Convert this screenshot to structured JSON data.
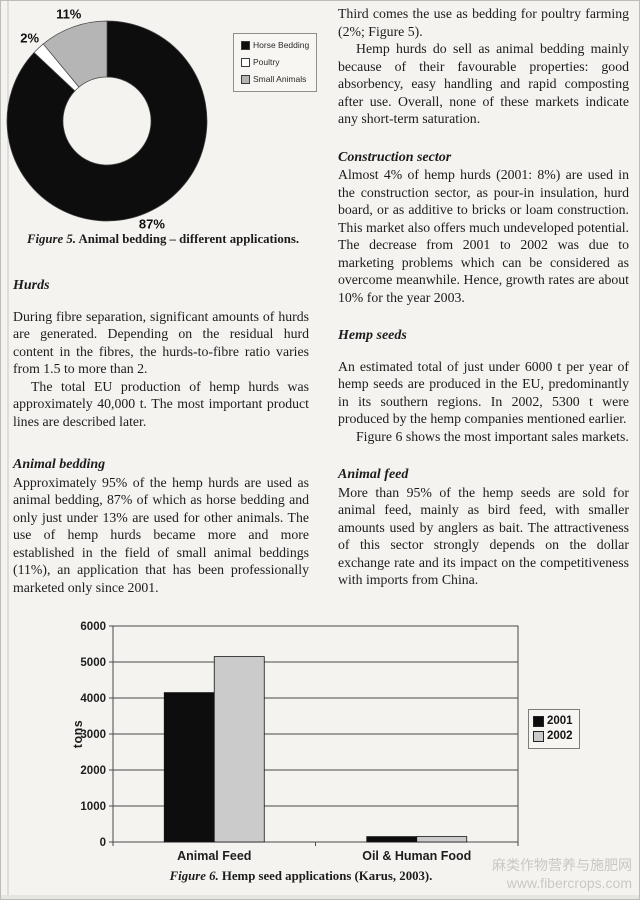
{
  "left_column": {
    "heading1": "Hurds",
    "para1": "During fibre separation, significant amounts of hurds are generated. Depending on the residual hurd content in the fibres, the hurds-to-fibre ratio varies from 1.5 to more than 2.",
    "para2": "The total EU production of hemp hurds was approximately 40,000 t. The most important product lines are described later.",
    "heading2": "Animal bedding",
    "para3": "Approximately 95% of the hemp hurds are used as animal bedding, 87% of which as horse bedding and only just under 13% are used for other animals. The use of hemp hurds became more and more established in the field of small animal beddings (11%), an application that has been professionally marketed only since 2001."
  },
  "right_column": {
    "para1": "Third comes the use as bedding for poultry farming (2%; Figure 5).",
    "para2": "Hemp hurds do sell as animal bedding mainly because of their favourable properties: good absorbency, easy handling and rapid composting after use. Overall, none of these markets indicate any short-term saturation.",
    "heading1": "Construction sector",
    "para3": "Almost 4% of hemp hurds (2001: 8%) are used in the construction sector, as pour-in insulation, hurd board, or as additive to bricks or loam construction. This market also offers much undeveloped potential. The decrease from 2001 to 2002 was due to marketing problems which can be considered as overcome meanwhile. Hence, growth rates are about 10% for the year 2003.",
    "heading2": "Hemp seeds",
    "para4": "An estimated total of just under 6000 t per year of hemp seeds are produced in the EU, predominantly in its southern regions. In 2002, 5300 t were produced by the hemp companies mentioned earlier.",
    "para5": "Figure 6 shows the most important sales markets.",
    "heading3": "Animal feed",
    "para6": "More than 95% of the hemp seeds are sold for animal feed, mainly as bird feed, with smaller amounts used by anglers as bait. The attractiveness of this sector strongly depends on the dollar exchange rate and its impact on the competitiveness with imports from China."
  },
  "figure5": {
    "caption_label": "Figure 5.",
    "caption_text": "Animal bedding – different applications."
  },
  "figure6": {
    "caption_label": "Figure 6.",
    "caption_text": "Hemp seed applications (Karus, 2003)."
  },
  "watermark": {
    "line1": "麻类作物营养与施肥网",
    "line2": "www.fibercrops.com"
  },
  "chart_data": [
    {
      "type": "pie",
      "subtype": "donut",
      "labels": [
        "Horse Bedding",
        "Poultry",
        "Small Animals"
      ],
      "values": [
        87,
        2,
        11
      ],
      "data_labels": [
        "87%",
        "2%",
        "11%"
      ],
      "colors": [
        "#0d0d0d",
        "#ffffff",
        "#b5b5b5"
      ],
      "start_angle_deg": 0,
      "direction": "clockwise",
      "legend_position": "right",
      "caption": "Figure 5. Animal bedding – different applications."
    },
    {
      "type": "bar",
      "categories": [
        "Animal Feed",
        "Oil & Human Food"
      ],
      "series": [
        {
          "name": "2001",
          "color": "#0d0d0d",
          "values": [
            4150,
            150
          ]
        },
        {
          "name": "2002",
          "color": "#cbcbcb",
          "values": [
            5150,
            150
          ]
        }
      ],
      "ylabel": "tons",
      "ylim": [
        0,
        6000
      ],
      "ytick_step": 1000,
      "grid": true,
      "legend_position": "right",
      "caption": "Figure 6. Hemp seed applications (Karus, 2003)."
    }
  ]
}
